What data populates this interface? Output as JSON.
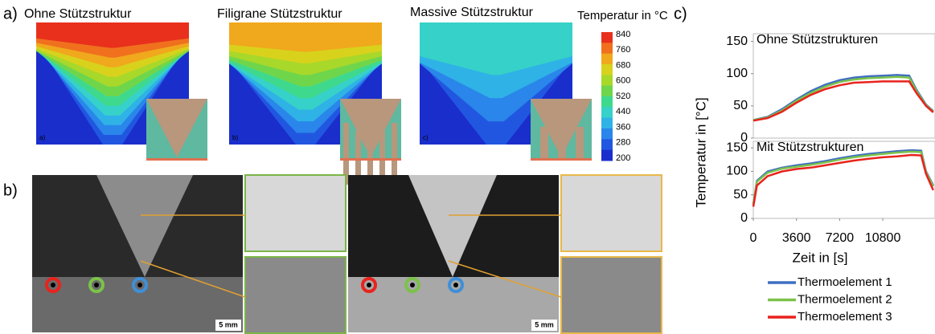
{
  "panel_a": {
    "label": "a)",
    "images": [
      {
        "title": "Ohne Stützstruktur",
        "sublabel": "a)"
      },
      {
        "title": "Filigrane Stützstruktur",
        "sublabel": "b)"
      },
      {
        "title": "Massive Stützstruktur",
        "sublabel": "c)"
      }
    ],
    "colorbar": {
      "title": "Temperatur in °C",
      "ticks": [
        840,
        760,
        680,
        600,
        520,
        440,
        360,
        280,
        200
      ]
    }
  },
  "panel_b": {
    "label": "b)",
    "scale_labels": [
      "5 mm",
      "5 mm"
    ]
  },
  "panel_c": {
    "label": "c)",
    "y_label": "Temperatur in [°C]",
    "x_label": "Zeit in [s]"
  },
  "chart_data": [
    {
      "type": "line",
      "title": "Ohne Stützstrukturen",
      "x": [
        0,
        1200,
        2400,
        3600,
        4800,
        6000,
        7200,
        8400,
        9600,
        10800,
        12000,
        13000,
        13600,
        14400,
        15000
      ],
      "series": [
        {
          "color": "#3f6fc0",
          "values": [
            28,
            33,
            45,
            60,
            73,
            83,
            90,
            94,
            96,
            97,
            98,
            97,
            75,
            52,
            42
          ]
        },
        {
          "color": "#7cc24a",
          "values": [
            28,
            32,
            43,
            58,
            70,
            80,
            87,
            91,
            93,
            94,
            95,
            94,
            73,
            51,
            41
          ]
        },
        {
          "color": "#e8231d",
          "values": [
            27,
            31,
            41,
            55,
            67,
            76,
            82,
            86,
            87,
            88,
            88,
            88,
            70,
            50,
            40
          ]
        }
      ],
      "xlim": [
        0,
        15150
      ],
      "ylim": [
        0,
        162
      ],
      "yticks": [
        0,
        50,
        100,
        150
      ]
    },
    {
      "type": "line",
      "title": "Mit Stützstrukturen",
      "x": [
        0,
        300,
        1200,
        2400,
        3600,
        4800,
        6000,
        7200,
        8400,
        9600,
        10800,
        12000,
        13200,
        14000,
        14400,
        15000
      ],
      "series": [
        {
          "name": "Thermoelement 1",
          "color": "#3f6fc0",
          "values": [
            30,
            80,
            100,
            108,
            113,
            117,
            122,
            128,
            133,
            137,
            140,
            143,
            145,
            144,
            100,
            70
          ]
        },
        {
          "name": "Thermoelement 2",
          "color": "#7cc24a",
          "values": [
            30,
            78,
            97,
            106,
            110,
            114,
            119,
            125,
            130,
            134,
            137,
            140,
            142,
            141,
            98,
            68
          ]
        },
        {
          "name": "Thermoelement 3",
          "color": "#e8231d",
          "values": [
            25,
            70,
            90,
            100,
            105,
            108,
            113,
            118,
            123,
            127,
            130,
            132,
            135,
            134,
            95,
            60
          ]
        }
      ],
      "xlim": [
        0,
        15150
      ],
      "ylim": [
        0,
        164
      ],
      "yticks": [
        0,
        50,
        100,
        150
      ],
      "xticks": [
        0,
        3600,
        7200,
        10800
      ]
    }
  ]
}
